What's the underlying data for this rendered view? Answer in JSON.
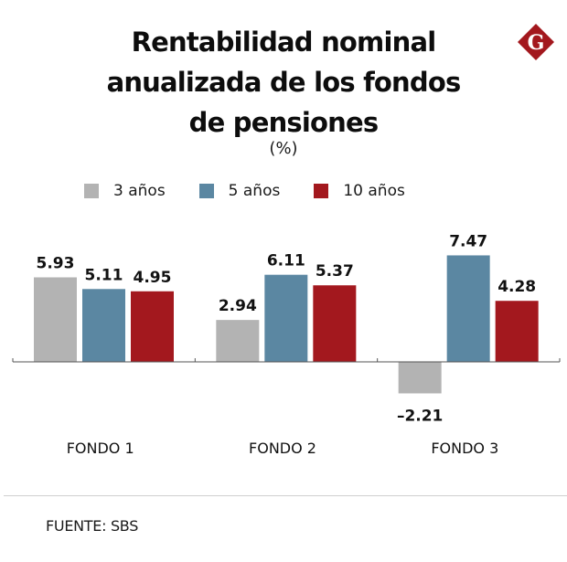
{
  "header": {
    "title_lines": [
      "Rentabilidad nominal",
      "anualizada de los fondos",
      "de pensiones"
    ],
    "unit": "(%)",
    "logo_letter": "G"
  },
  "colors": {
    "gray": "#b3b3b3",
    "blue": "#5b87a2",
    "red": "#a3181e",
    "logo": "#a3181e",
    "axis": "#555555"
  },
  "legend": [
    {
      "label": "3 años",
      "color": "#b3b3b3"
    },
    {
      "label": "5 años",
      "color": "#5b87a2"
    },
    {
      "label": "10 años",
      "color": "#a3181e"
    }
  ],
  "chart_data": {
    "type": "bar",
    "title": "Rentabilidad nominal anualizada de los fondos de pensiones",
    "subtitle": "(%)",
    "xlabel": "",
    "ylabel": "",
    "categories": [
      "FONDO 1",
      "FONDO 2",
      "FONDO 3"
    ],
    "series": [
      {
        "name": "3 años",
        "color": "#b3b3b3",
        "values": [
          5.93,
          2.94,
          -2.21
        ],
        "labels": [
          "5.93",
          "2.94",
          "–2.21"
        ]
      },
      {
        "name": "5 años",
        "color": "#5b87a2",
        "values": [
          5.11,
          6.11,
          7.47
        ],
        "labels": [
          "5.11",
          "6.11",
          "7.47"
        ]
      },
      {
        "name": "10 años",
        "color": "#a3181e",
        "values": [
          4.95,
          5.37,
          4.28
        ],
        "labels": [
          "4.95",
          "5.37",
          "4.28"
        ]
      }
    ],
    "ylim": [
      -3,
      8
    ],
    "grid": false,
    "legend_position": "top-left"
  },
  "footer": {
    "source": "FUENTE: SBS"
  }
}
